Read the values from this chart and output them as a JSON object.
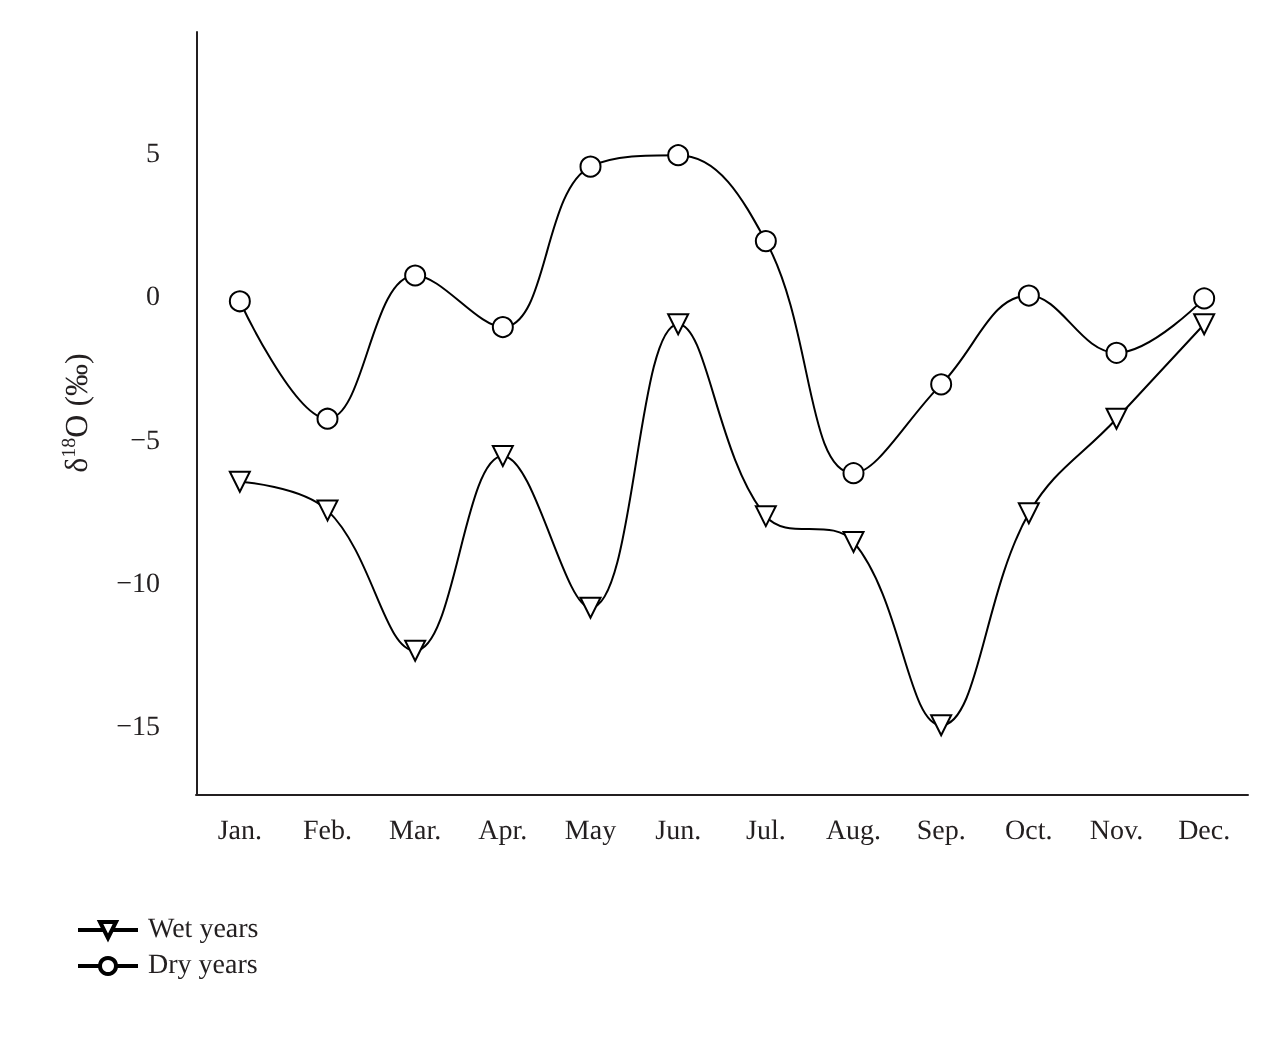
{
  "chart_data": {
    "type": "line",
    "ylabel": "δ$^{18}$O (‰)",
    "categories": [
      "Jan.",
      "Feb.",
      "Mar.",
      "Apr.",
      "May",
      "Jun.",
      "Jul.",
      "Aug.",
      "Sep.",
      "Oct.",
      "Nov.",
      "Dec."
    ],
    "series": [
      {
        "name": "Wet years",
        "color": "#000000",
        "marker": "triangle",
        "values": [
          -6.4,
          -7.4,
          -12.3,
          -5.5,
          -10.8,
          -0.9,
          -7.6,
          -8.5,
          -14.9,
          -7.5,
          -4.2,
          -0.9
        ]
      },
      {
        "name": "Dry years",
        "color": "#000000",
        "marker": "circle",
        "values": [
          -0.1,
          -4.2,
          0.8,
          -1.0,
          4.6,
          5.0,
          2.0,
          -6.1,
          -3.0,
          0.1,
          -1.9,
          0.0
        ]
      }
    ],
    "ylim": [
      -17.3,
      9.3
    ],
    "yticks": [
      {
        "value": -15,
        "label": "−15"
      },
      {
        "value": -10,
        "label": "−10"
      },
      {
        "value": -5,
        "label": "−5"
      },
      0,
      5
    ],
    "grid": false,
    "legend": "bottom left",
    "line_style": "solid"
  }
}
